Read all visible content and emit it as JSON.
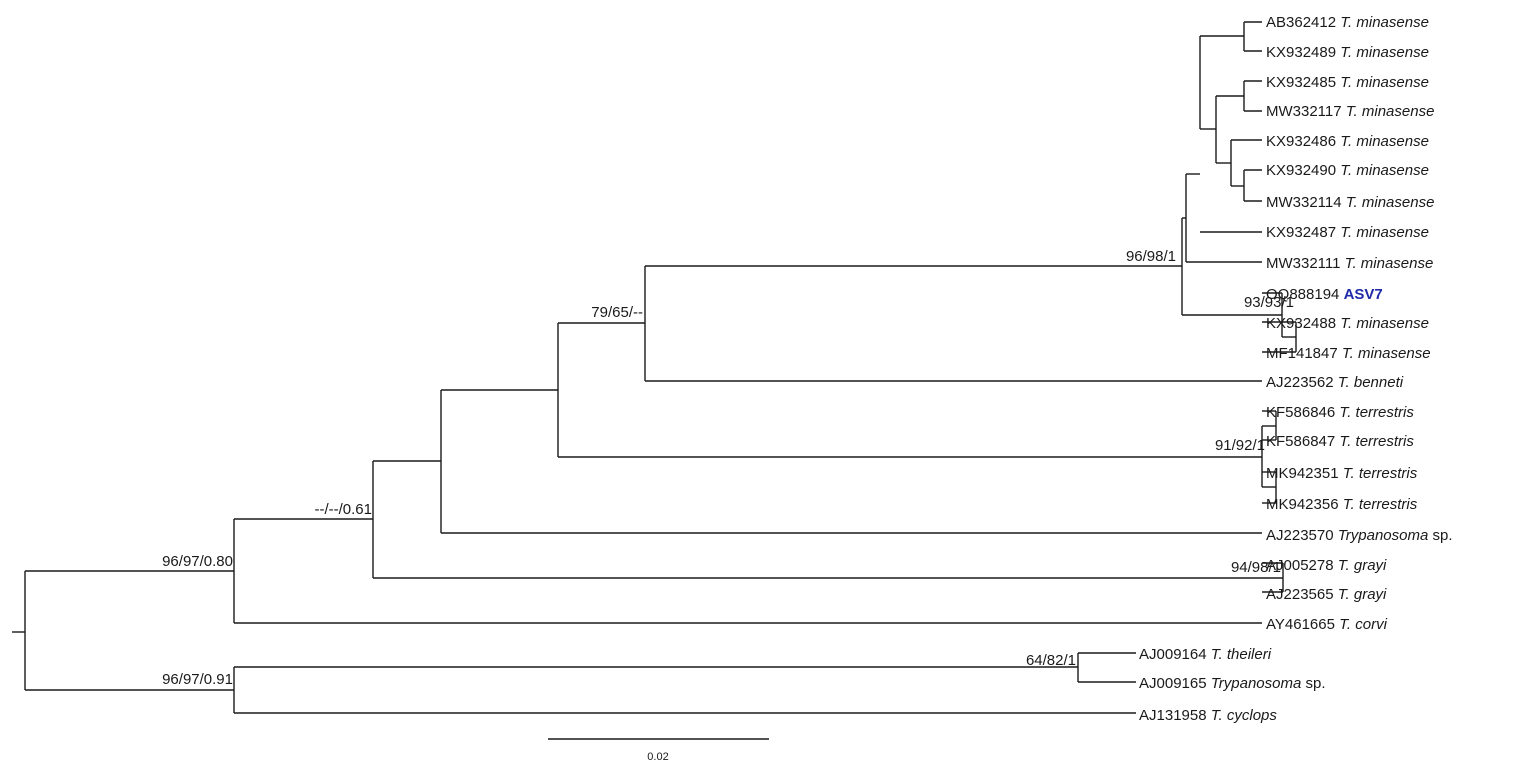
{
  "tree": {
    "taxa": [
      {
        "acc": "AB362412",
        "species": "T. minasense"
      },
      {
        "acc": "KX932489",
        "species": "T. minasense"
      },
      {
        "acc": "KX932485",
        "species": "T. minasense"
      },
      {
        "acc": "MW332117",
        "species": "T. minasense"
      },
      {
        "acc": "KX932486",
        "species": "T. minasense"
      },
      {
        "acc": "KX932490",
        "species": "T. minasense"
      },
      {
        "acc": "MW332114",
        "species": "T. minasense"
      },
      {
        "acc": "KX932487",
        "species": "T. minasense"
      },
      {
        "acc": "MW332111",
        "species": "T. minasense"
      },
      {
        "acc": "OQ888194",
        "species": "ASV7",
        "highlight": true
      },
      {
        "acc": "KX932488",
        "species": "T. minasense"
      },
      {
        "acc": "MF141847",
        "species": "T. minasense"
      },
      {
        "acc": "AJ223562",
        "species": "T. benneti"
      },
      {
        "acc": "KF586846",
        "species": "T. terrestris"
      },
      {
        "acc": "KF586847",
        "species": "T. terrestris"
      },
      {
        "acc": "MK942351",
        "species": "T. terrestris"
      },
      {
        "acc": "MK942356",
        "species": "T. terrestris"
      },
      {
        "acc": "AJ223570",
        "species": "Trypanosoma",
        "suffix": "sp."
      },
      {
        "acc": "AJ005278",
        "species": "T. grayi"
      },
      {
        "acc": "AJ223565",
        "species": "T. grayi"
      },
      {
        "acc": "AY461665",
        "species": "T. corvi"
      },
      {
        "acc": "AJ009164",
        "species": "T. theileri"
      },
      {
        "acc": "AJ009165",
        "species": "Trypanosoma",
        "suffix": "sp."
      },
      {
        "acc": "AJ131958",
        "species": "T. cyclops"
      }
    ],
    "support_values": [
      "96/98/1",
      "93/93/1",
      "79/65/--",
      "91/92/1",
      "--/--/0.61",
      "94/98/1",
      "96/97/0.80",
      "64/82/1",
      "96/97/0.91"
    ],
    "highlight_color": "#1f2aa8",
    "scale_bar": {
      "label": "0.02",
      "value": 0.02
    }
  }
}
